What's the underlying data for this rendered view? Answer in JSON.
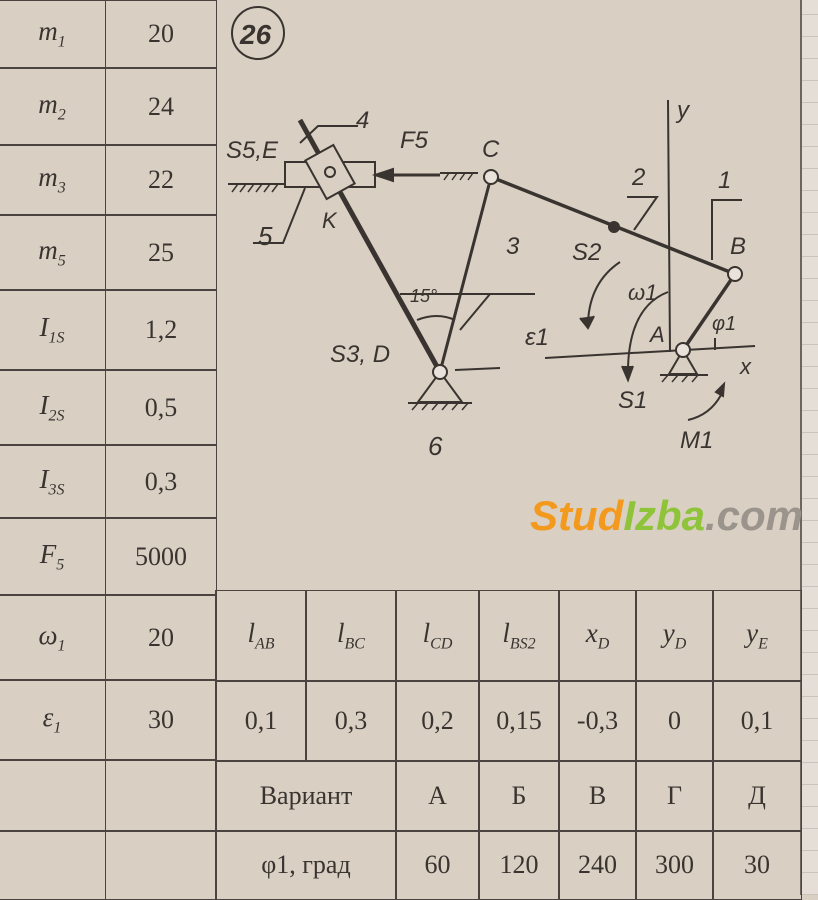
{
  "params": [
    {
      "sym": "m",
      "sub": "1",
      "value": "20"
    },
    {
      "sym": "m",
      "sub": "2",
      "value": "24"
    },
    {
      "sym": "m",
      "sub": "3",
      "value": "22"
    },
    {
      "sym": "m",
      "sub": "5",
      "value": "25"
    },
    {
      "sym": "I",
      "sub": "1S",
      "value": "1,2"
    },
    {
      "sym": "I",
      "sub": "2S",
      "value": "0,5"
    },
    {
      "sym": "I",
      "sub": "3S",
      "value": "0,3"
    },
    {
      "sym": "F",
      "sub": "5",
      "value": "5000"
    },
    {
      "sym": "ω",
      "sub": "1",
      "value": "20"
    },
    {
      "sym": "ε",
      "sub": "1",
      "value": "30"
    }
  ],
  "lengths": {
    "headers": [
      {
        "sym": "l",
        "sub": "AB"
      },
      {
        "sym": "l",
        "sub": "BC"
      },
      {
        "sym": "l",
        "sub": "CD"
      },
      {
        "sym": "l",
        "sub": "BS2"
      },
      {
        "sym": "x",
        "sub": "D"
      },
      {
        "sym": "y",
        "sub": "D"
      },
      {
        "sym": "y",
        "sub": "E"
      }
    ],
    "values": [
      "0,1",
      "0,3",
      "0,2",
      "0,15",
      "-0,3",
      "0",
      "0,1"
    ]
  },
  "variants": {
    "label": "Вариант",
    "names": [
      "А",
      "Б",
      "В",
      "Г",
      "Д"
    ],
    "phi_label": "φ1, град",
    "phi_values": [
      "60",
      "120",
      "240",
      "300",
      "30"
    ]
  },
  "diagram": {
    "number": "26",
    "labels": {
      "n4": "4",
      "s5e": "S5,E",
      "f5": "F5",
      "c": "C",
      "k": "K",
      "n5": "5",
      "n3": "3",
      "angle": "15°",
      "n2": "2",
      "n1": "1",
      "b": "B",
      "y": "y",
      "s2": "S2",
      "eps": "ε1",
      "omega": "ω1",
      "a": "A",
      "phi": "φ1",
      "s3d": "S3, D",
      "s1": "S1",
      "x": "x",
      "m1": "M1",
      "n6": "6"
    }
  },
  "watermark": {
    "part1": "Stud",
    "part2": "Izba",
    ".com": ".com",
    "part3": ".com"
  }
}
